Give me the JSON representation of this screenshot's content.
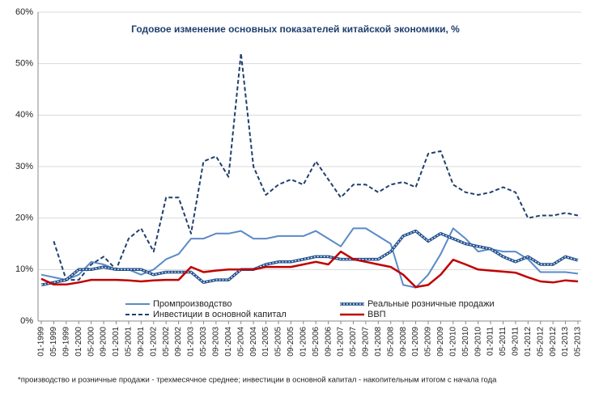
{
  "chart_data": {
    "type": "line",
    "title": "Годовое изменение основных  показателей китайской экономики, %",
    "footnote": "*производство и розничные продажи - трехмесячное среднее; инвестиции в основной капитал - накопительным итогом с начала года",
    "categories": [
      "01-1999",
      "05-1999",
      "09-1999",
      "01-2000",
      "05-2000",
      "09-2000",
      "01-2001",
      "05-2001",
      "09-2001",
      "01-2002",
      "05-2002",
      "09-2002",
      "01-2003",
      "05-2003",
      "09-2003",
      "01-2004",
      "05-2004",
      "09-2004",
      "01-2005",
      "05-2005",
      "09-2005",
      "01-2006",
      "05-2006",
      "09-2006",
      "01-2007",
      "05-2007",
      "09-2007",
      "01-2008",
      "05-2008",
      "09-2008",
      "01-2009",
      "05-2009",
      "09-2009",
      "01-2010",
      "05-2010",
      "09-2010",
      "01-2011",
      "05-2011",
      "09-2011",
      "01-2012",
      "05-2012",
      "09-2012",
      "01-2013",
      "05-2013"
    ],
    "series": [
      {
        "name": "Промпроизводство",
        "color": "#5b8ac6",
        "style": "solid",
        "values": [
          9,
          8.5,
          8,
          9,
          11.5,
          11,
          10,
          10,
          9,
          10,
          12,
          13,
          16,
          16,
          17,
          17,
          17.5,
          16,
          16,
          16.5,
          16.5,
          16.5,
          17.5,
          16,
          14.5,
          18,
          18,
          16.5,
          15,
          7,
          6.5,
          9,
          13,
          18,
          16,
          13.5,
          14,
          13.5,
          13.5,
          12,
          9.5,
          9.5,
          9.5,
          9.2
        ]
      },
      {
        "name": "Реальные розничные продажи",
        "color": "#1f4e8c",
        "style": "markers",
        "values": [
          7,
          7.5,
          8,
          10,
          10,
          10.5,
          10,
          10,
          10,
          9,
          9.5,
          9.5,
          9.5,
          7.5,
          8,
          8,
          10,
          10,
          11,
          11.5,
          11.5,
          12,
          12.5,
          12.5,
          12,
          12,
          12,
          12,
          13.5,
          16.5,
          17.5,
          15.5,
          17,
          16,
          15,
          14.5,
          14,
          12.5,
          11.5,
          12.5,
          11,
          11,
          12.5,
          11.8
        ]
      },
      {
        "name": "Инвестиции в основной капитал",
        "color": "#1f3f6e",
        "style": "dashed",
        "values": [
          null,
          15.5,
          8,
          8,
          11,
          12.5,
          10,
          16,
          18,
          13.5,
          24,
          24,
          17,
          31,
          32,
          28,
          52,
          30,
          24.5,
          26.5,
          27.5,
          26.5,
          31,
          27.5,
          24,
          26.5,
          26.5,
          25,
          26.5,
          27,
          26,
          32.5,
          33,
          26.5,
          25,
          24.5,
          25,
          26,
          25,
          20,
          20.5,
          20.5,
          21,
          20.5
        ]
      },
      {
        "name": "ВВП",
        "color": "#c00000",
        "style": "thick",
        "values": [
          8.2,
          7.1,
          7.1,
          7.5,
          8,
          8,
          8,
          7.9,
          7.7,
          7.9,
          8,
          8,
          10.5,
          9.5,
          9.8,
          10,
          10,
          10,
          10.5,
          10.5,
          10.5,
          11,
          11.5,
          11,
          13.5,
          12,
          11.5,
          11,
          10.5,
          9,
          6.6,
          7,
          9,
          11.9,
          11,
          10,
          9.8,
          9.6,
          9.4,
          8.5,
          7.7,
          7.5,
          7.9,
          7.7
        ]
      }
    ],
    "ylim": [
      0,
      60
    ],
    "yticks": [
      {
        "value": 0,
        "label": "0%"
      },
      {
        "value": 10,
        "label": "10%"
      },
      {
        "value": 20,
        "label": "20%"
      },
      {
        "value": 30,
        "label": "30%"
      },
      {
        "value": 40,
        "label": "40%"
      },
      {
        "value": 50,
        "label": "50%"
      },
      {
        "value": 60,
        "label": "60%"
      }
    ],
    "grid": true
  }
}
